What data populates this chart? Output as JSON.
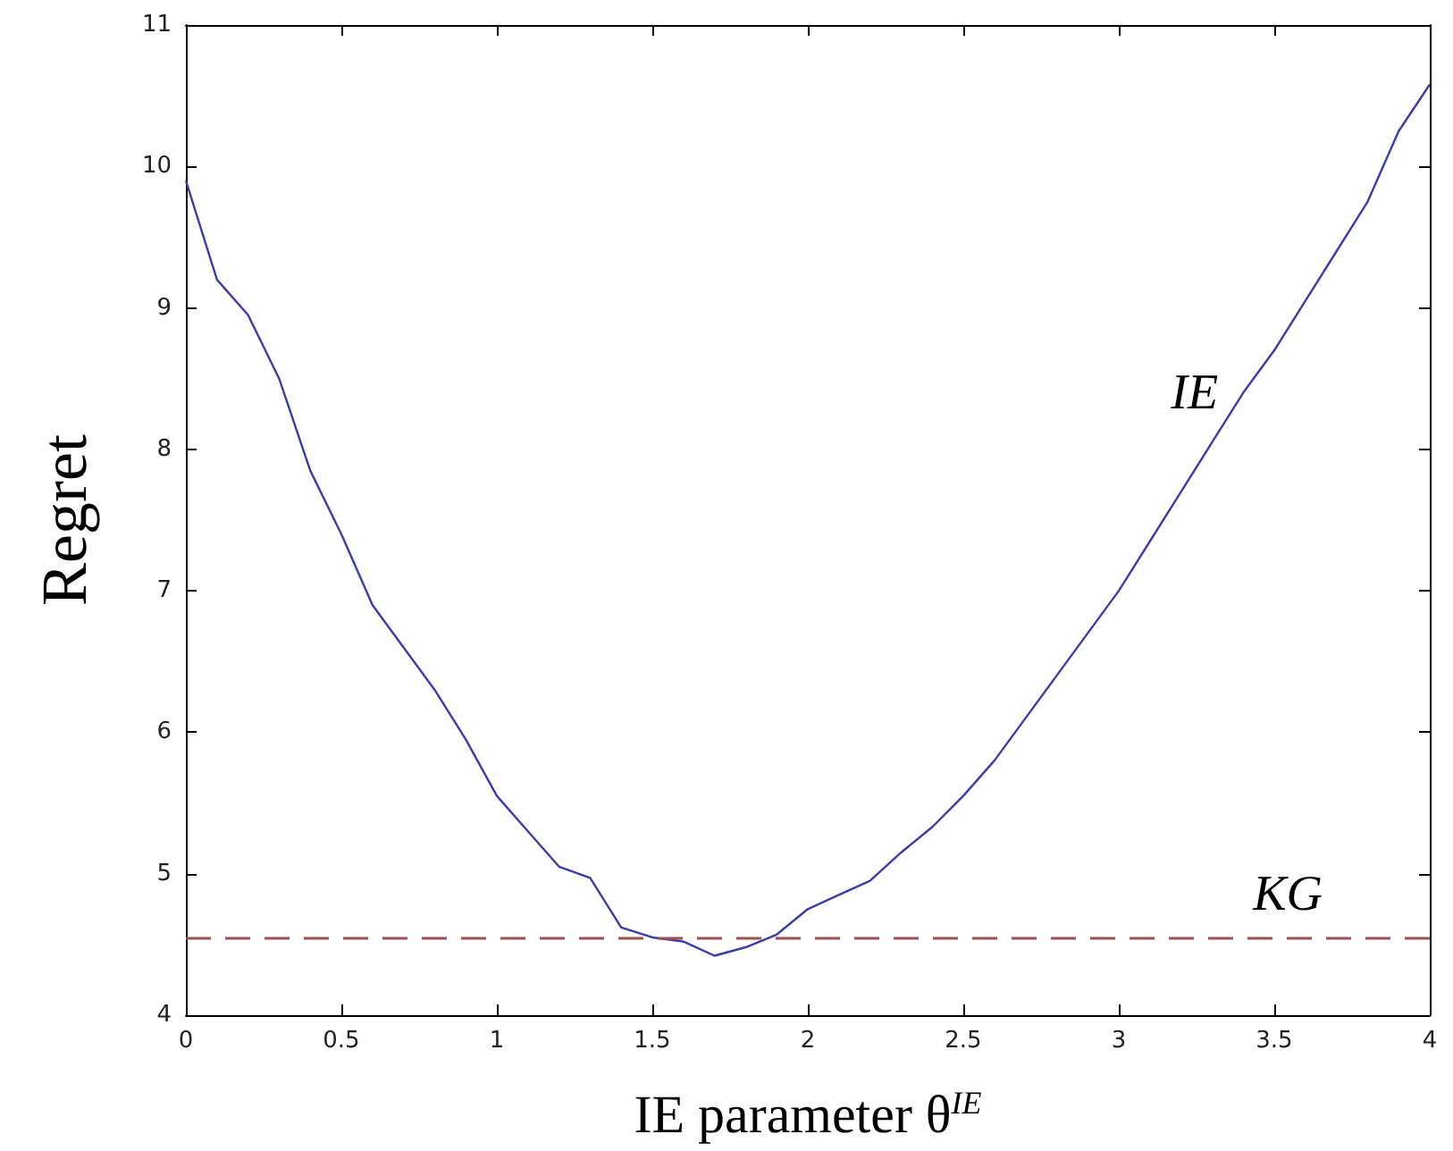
{
  "chart_data": {
    "type": "line",
    "xlabel": "IE parameter θ$^{IE}$",
    "ylabel": "Regret",
    "x": [
      0,
      0.1,
      0.2,
      0.3,
      0.4,
      0.5,
      0.6,
      0.7,
      0.8,
      0.9,
      1.0,
      1.1,
      1.2,
      1.3,
      1.4,
      1.5,
      1.6,
      1.7,
      1.8,
      1.9,
      2.0,
      2.1,
      2.2,
      2.3,
      2.4,
      2.5,
      2.6,
      2.7,
      2.8,
      2.9,
      3.0,
      3.1,
      3.2,
      3.3,
      3.4,
      3.5,
      3.6,
      3.7,
      3.8,
      3.9,
      4.0
    ],
    "series": [
      {
        "name": "IE",
        "color": "#3b3bb0",
        "values": [
          9.9,
          9.2,
          8.95,
          8.5,
          7.85,
          7.4,
          6.9,
          6.6,
          6.3,
          5.95,
          5.55,
          5.3,
          5.05,
          4.97,
          4.62,
          4.55,
          4.52,
          4.42,
          4.48,
          4.57,
          4.75,
          4.85,
          4.95,
          5.15,
          5.33,
          5.55,
          5.8,
          6.1,
          6.4,
          6.7,
          7.0,
          7.35,
          7.7,
          8.05,
          8.4,
          8.7,
          9.05,
          9.4,
          9.75,
          10.25,
          10.58
        ]
      }
    ],
    "ref_lines": [
      {
        "axis": "y",
        "value": 4.55,
        "label": "KG",
        "color": "#a0504f",
        "line_style": "dashed"
      }
    ],
    "xlim": [
      0,
      4
    ],
    "xticks": [
      0,
      0.5,
      1,
      1.5,
      2,
      2.5,
      3,
      3.5,
      4
    ],
    "ylim": [
      4,
      11
    ],
    "yticks": [
      4,
      5,
      6,
      7,
      8,
      9,
      10,
      11
    ],
    "grid": false,
    "legend": false,
    "marker": "none",
    "line_style": "solid"
  }
}
